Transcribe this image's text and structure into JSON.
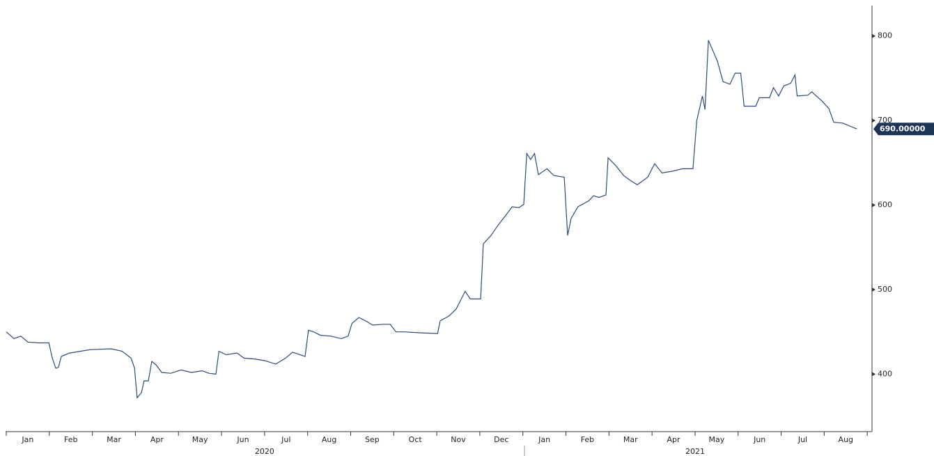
{
  "chart_data": {
    "type": "line",
    "x": [
      0,
      0.18,
      0.34,
      0.5,
      0.74,
      0.99,
      1.07,
      1.15,
      1.21,
      1.28,
      1.47,
      1.96,
      2.44,
      2.69,
      2.9,
      2.98,
      3.04,
      3.14,
      3.2,
      3.3,
      3.38,
      3.48,
      3.61,
      3.82,
      4.06,
      4.3,
      4.55,
      4.71,
      4.87,
      4.94,
      5.11,
      5.36,
      5.52,
      5.76,
      6.0,
      6.26,
      6.49,
      6.65,
      6.94,
      7.02,
      7.14,
      7.3,
      7.54,
      7.78,
      7.94,
      8.03,
      8.19,
      8.35,
      8.51,
      8.75,
      8.92,
      9.05,
      9.24,
      9.56,
      10.02,
      10.08,
      10.29,
      10.45,
      10.66,
      10.78,
      11.02,
      11.08,
      11.26,
      11.42,
      11.59,
      11.75,
      11.91,
      12.02,
      12.09,
      12.18,
      12.27,
      12.36,
      12.56,
      12.72,
      12.96,
      13.04,
      13.12,
      13.28,
      13.53,
      13.64,
      13.77,
      13.93,
      13.98,
      14.17,
      14.34,
      14.5,
      14.66,
      14.9,
      15.06,
      15.23,
      15.47,
      15.71,
      15.95,
      16.04,
      16.17,
      16.23,
      16.31,
      16.52,
      16.65,
      16.81,
      16.93,
      17.06,
      17.14,
      17.41,
      17.49,
      17.73,
      17.82,
      17.94,
      18.06,
      18.22,
      18.32,
      18.37,
      18.62,
      18.71,
      18.95,
      19.11,
      19.22,
      19.43,
      19.76
    ],
    "series": [
      {
        "color": "#2b4a7a",
        "values": [
          450,
          442,
          445,
          438,
          437,
          437,
          419,
          407,
          408,
          421,
          425,
          429,
          430,
          427,
          419,
          407,
          372,
          378,
          392,
          392,
          415,
          411,
          402,
          401,
          405,
          402,
          404,
          401,
          400,
          427,
          423,
          425,
          419,
          418,
          416,
          412,
          419,
          426,
          421,
          452,
          450,
          446,
          445,
          442,
          445,
          460,
          467,
          463,
          458,
          459,
          459,
          450,
          450,
          449,
          448,
          463,
          469,
          477,
          498,
          489,
          489,
          554,
          564,
          576,
          587,
          598,
          597,
          601,
          661,
          654,
          661,
          636,
          643,
          635,
          633,
          564,
          584,
          598,
          605,
          611,
          609,
          612,
          656,
          646,
          635,
          629,
          624,
          633,
          649,
          638,
          640,
          643,
          643,
          700,
          729,
          713,
          795,
          770,
          746,
          743,
          756,
          756,
          717,
          717,
          727,
          727,
          739,
          729,
          741,
          744,
          754,
          729,
          730,
          734,
          723,
          714,
          698,
          697,
          690
        ]
      }
    ],
    "last_value": {
      "value": 690,
      "label": "690.00000"
    },
    "xlim": [
      0,
      20.11
    ],
    "xticks": [
      {
        "value": 0.5,
        "label": "Jan"
      },
      {
        "value": 1.5,
        "label": "Feb"
      },
      {
        "value": 2.5,
        "label": "Mar"
      },
      {
        "value": 3.5,
        "label": "Apr"
      },
      {
        "value": 4.5,
        "label": "May"
      },
      {
        "value": 5.5,
        "label": "Jun"
      },
      {
        "value": 6.5,
        "label": "Jul"
      },
      {
        "value": 7.5,
        "label": "Aug"
      },
      {
        "value": 8.5,
        "label": "Sep"
      },
      {
        "value": 9.5,
        "label": "Oct"
      },
      {
        "value": 10.5,
        "label": "Nov"
      },
      {
        "value": 11.5,
        "label": "Dec"
      },
      {
        "value": 12.5,
        "label": "Jan"
      },
      {
        "value": 13.5,
        "label": "Feb"
      },
      {
        "value": 14.5,
        "label": "Mar"
      },
      {
        "value": 15.5,
        "label": "Apr"
      },
      {
        "value": 16.5,
        "label": "May"
      },
      {
        "value": 17.5,
        "label": "Jun"
      },
      {
        "value": 18.5,
        "label": "Jul"
      },
      {
        "value": 19.5,
        "label": "Aug"
      }
    ],
    "year_labels": [
      {
        "value": 6,
        "label": "2020"
      },
      {
        "value": 16,
        "label": "2021"
      }
    ],
    "ylim": [
      332,
      836
    ],
    "yticks": [
      400,
      500,
      600,
      700,
      800
    ]
  }
}
